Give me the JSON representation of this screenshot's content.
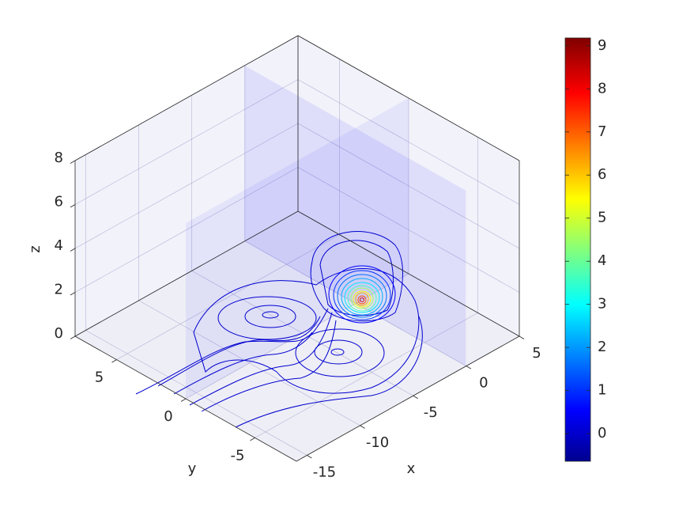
{
  "chart_data": {
    "type": "contour3",
    "xlabel": "x",
    "ylabel": "y",
    "zlabel": "z",
    "xlim": [
      -16,
      5
    ],
    "ylim": [
      -8,
      8
    ],
    "zlim": [
      0,
      8
    ],
    "xticks": [
      -15,
      -10,
      -5,
      0,
      5
    ],
    "yticks": [
      -5,
      0,
      5
    ],
    "zticks": [
      0,
      2,
      4,
      6,
      8
    ],
    "grid": true,
    "colorbar": {
      "clim": [
        -0.64,
        9.18
      ],
      "ticks": [
        0,
        1,
        2,
        3,
        4,
        5,
        6,
        7,
        8,
        9
      ]
    }
  }
}
